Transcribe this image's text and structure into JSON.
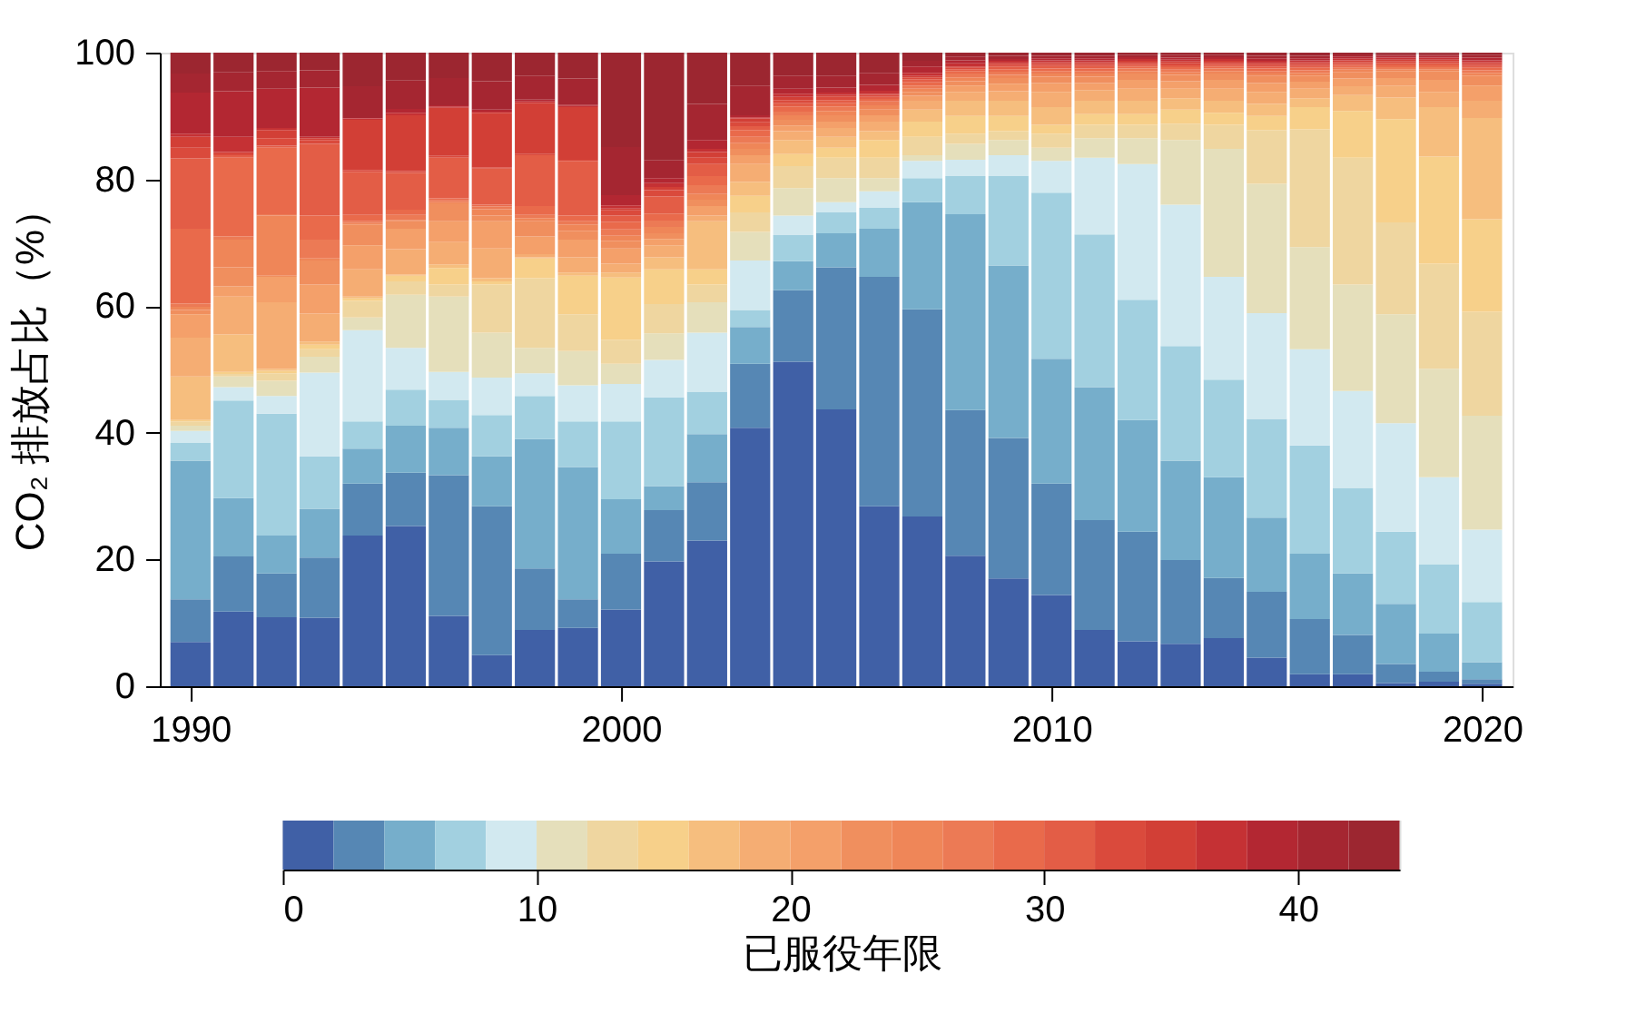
{
  "chart_data": {
    "type": "bar",
    "stacked": true,
    "ylabel": "CO₂ 排放占比（%）",
    "clabel": "已服役年限",
    "clim": [
      0,
      44
    ],
    "cticks": [
      0,
      10,
      20,
      30,
      40
    ],
    "x": [
      1990,
      1991,
      1992,
      1993,
      1994,
      1995,
      1996,
      1997,
      1998,
      1999,
      2000,
      2001,
      2002,
      2003,
      2004,
      2005,
      2006,
      2007,
      2008,
      2009,
      2010,
      2011,
      2012,
      2013,
      2014,
      2015,
      2016,
      2017,
      2018,
      2019,
      2020
    ],
    "xlim": [
      1989.5,
      2020.5
    ],
    "xticks": [
      1990,
      2000,
      2010,
      2020
    ],
    "ylim": [
      0,
      100
    ],
    "yticks": [
      0,
      20,
      40,
      60,
      80,
      100
    ],
    "grid": false,
    "legend": false,
    "series": [
      {
        "color": "#4060a6",
        "values": [
          7.0,
          11.8,
          10.9,
          10.8,
          23.8,
          25.3,
          11.1,
          4.9,
          8.9,
          9.2,
          12.1,
          19.7,
          23.0,
          40.8,
          51.2,
          43.7,
          28.4,
          26.8,
          20.6,
          17.0,
          14.4,
          8.9,
          7.1,
          6.7,
          7.6,
          4.5,
          1.9,
          1.9,
          0.5,
          0.7,
          0.4
        ]
      },
      {
        "color": "#5687b4",
        "values": [
          6.7,
          8.7,
          6.9,
          9.5,
          8.2,
          8.4,
          22.2,
          23.5,
          9.7,
          4.5,
          8.8,
          8.1,
          9.2,
          10.1,
          11.3,
          22.4,
          36.2,
          32.7,
          23.0,
          22.2,
          17.6,
          17.3,
          17.3,
          13.2,
          9.5,
          10.4,
          8.7,
          6.2,
          3.0,
          1.6,
          0.7
        ]
      },
      {
        "color": "#76aecb",
        "values": [
          21.9,
          9.2,
          6.0,
          7.7,
          5.5,
          7.4,
          7.5,
          7.9,
          20.4,
          20.9,
          8.6,
          3.8,
          7.6,
          5.8,
          4.6,
          5.4,
          7.6,
          16.9,
          30.9,
          27.2,
          19.7,
          21.0,
          17.6,
          15.7,
          15.9,
          11.7,
          10.3,
          9.7,
          9.5,
          6.0,
          2.7
        ]
      },
      {
        "color": "#a2d0e0",
        "values": [
          2.8,
          15.4,
          19.2,
          8.3,
          4.3,
          5.7,
          4.4,
          6.5,
          6.8,
          7.2,
          12.3,
          14.0,
          6.7,
          2.7,
          4.1,
          3.3,
          3.3,
          3.8,
          6.0,
          14.1,
          26.2,
          24.1,
          19.0,
          18.1,
          15.4,
          15.6,
          17.1,
          13.5,
          11.4,
          10.9,
          9.5
        ]
      },
      {
        "color": "#d2e9f0",
        "values": [
          1.9,
          2.1,
          2.8,
          13.2,
          14.4,
          6.6,
          4.4,
          5.9,
          3.6,
          5.7,
          5.9,
          5.9,
          9.3,
          7.8,
          3.1,
          1.6,
          2.6,
          2.7,
          2.6,
          3.3,
          5.0,
          12.1,
          21.4,
          22.3,
          16.2,
          16.7,
          15.2,
          15.3,
          17.1,
          13.8,
          11.4
        ]
      },
      {
        "color": "#e5dfbb",
        "values": [
          0.8,
          1.7,
          2.4,
          2.5,
          2.0,
          8.4,
          11.9,
          7.1,
          4.0,
          5.4,
          3.2,
          4.2,
          4.8,
          4.5,
          4.3,
          3.8,
          2.1,
          0.9,
          2.5,
          2.4,
          2.1,
          3.1,
          4.1,
          10.2,
          20.2,
          20.4,
          16.1,
          16.8,
          17.2,
          17.1,
          18.0
        ]
      },
      {
        "color": "#efd6a0",
        "values": [
          0.7,
          0.4,
          1.2,
          1.2,
          2.6,
          2.1,
          1.9,
          7.6,
          11.0,
          5.8,
          3.8,
          4.6,
          2.8,
          3.1,
          3.5,
          3.2,
          3.2,
          2.9,
          1.6,
          1.4,
          2.2,
          2.1,
          2.1,
          2.6,
          3.8,
          8.5,
          18.6,
          20.0,
          14.5,
          16.6,
          16.4
        ]
      },
      {
        "color": "#f7d08a",
        "values": [
          0.2,
          0.3,
          0.4,
          0.7,
          0.4,
          0.9,
          2.6,
          0.5,
          3.1,
          6.1,
          9.8,
          5.5,
          2.4,
          2.6,
          1.9,
          1.6,
          2.8,
          2.4,
          2.8,
          2.4,
          1.4,
          1.7,
          1.7,
          2.2,
          1.9,
          2.2,
          3.5,
          7.4,
          16.3,
          16.9,
          14.6
        ]
      },
      {
        "color": "#f6be7e",
        "values": [
          6.9,
          5.9,
          0.3,
          0.5,
          0.3,
          0.2,
          0.6,
          0.5,
          0.2,
          0.5,
          0.8,
          1.9,
          7.6,
          2.2,
          2.2,
          1.7,
          1.4,
          1.9,
          2.4,
          2.4,
          2.8,
          2.1,
          2.1,
          1.8,
          1.9,
          1.9,
          1.4,
          2.5,
          3.4,
          7.8,
          16.0
        ]
      },
      {
        "color": "#f5ad73",
        "values": [
          6.1,
          6.0,
          10.5,
          4.4,
          4.3,
          4.0,
          3.5,
          4.7,
          0.5,
          2.4,
          1.4,
          1.9,
          0.9,
          2.8,
          1.4,
          1.4,
          1.5,
          1.4,
          1.4,
          1.5,
          2.4,
          1.7,
          1.9,
          1.5,
          1.9,
          1.9,
          1.5,
          1.4,
          1.9,
          2.4,
          2.7
        ]
      },
      {
        "color": "#f4a06a",
        "values": [
          3.7,
          1.6,
          4.0,
          4.6,
          3.8,
          3.2,
          3.3,
          4.3,
          2.8,
          2.8,
          2.4,
          1.0,
          1.5,
          1.4,
          0.9,
          1.0,
          1.0,
          0.8,
          1.0,
          1.2,
          1.4,
          1.1,
          1.4,
          1.2,
          1.4,
          1.4,
          1.1,
          1.2,
          1.2,
          1.9,
          2.4
        ]
      },
      {
        "color": "#f08f5e",
        "values": [
          0.7,
          3.0,
          0.2,
          3.8,
          3.3,
          1.2,
          2.8,
          0.9,
          2.4,
          1.4,
          1.2,
          0.9,
          1.0,
          1.0,
          0.9,
          1.0,
          0.9,
          0.6,
          0.7,
          0.9,
          1.0,
          1.0,
          1.0,
          1.0,
          1.0,
          1.1,
          1.0,
          1.0,
          1.1,
          1.4,
          1.6
        ]
      },
      {
        "color": "#ef8658",
        "values": [
          0.5,
          4.4,
          9.5,
          0.3,
          0.2,
          0.2,
          0.2,
          1.0,
          0.5,
          1.0,
          0.8,
          1.0,
          0.9,
          0.9,
          0.7,
          0.7,
          0.7,
          0.5,
          0.6,
          0.5,
          0.5,
          0.5,
          0.4,
          0.4,
          0.4,
          0.4,
          0.4,
          0.4,
          0.3,
          0.3,
          0.4
        ]
      },
      {
        "color": "#ec7a55",
        "values": [
          0.5,
          0.5,
          0.2,
          3.0,
          0.3,
          0.8,
          0.3,
          0.4,
          0.5,
          0.5,
          1.0,
          1.0,
          1.4,
          1.0,
          0.6,
          0.7,
          0.6,
          0.5,
          0.6,
          0.5,
          0.4,
          0.4,
          0.4,
          0.4,
          0.4,
          0.4,
          0.4,
          0.3,
          0.3,
          0.3,
          0.4
        ]
      },
      {
        "color": "#e96a4b",
        "values": [
          11.8,
          12.4,
          10.5,
          3.8,
          1.0,
          0.8,
          0.3,
          0.3,
          1.4,
          0.9,
          1.2,
          1.1,
          1.4,
          1.1,
          0.8,
          0.5,
          0.4,
          0.5,
          0.4,
          0.4,
          0.4,
          0.4,
          0.3,
          0.4,
          0.3,
          0.4,
          0.4,
          0.3,
          0.3,
          0.3,
          0.4
        ]
      },
      {
        "color": "#e35d46",
        "values": [
          11.1,
          0.4,
          0.3,
          11.3,
          6.8,
          5.8,
          6.4,
          5.7,
          8.0,
          8.6,
          1.0,
          2.7,
          1.9,
          0.6,
          0.5,
          0.5,
          0.3,
          0.5,
          0.3,
          0.4,
          0.4,
          0.4,
          0.3,
          0.3,
          0.3,
          0.3,
          0.3,
          0.3,
          0.3,
          0.3,
          0.3
        ]
      },
      {
        "color": "#da4a3c",
        "values": [
          1.7,
          0.3,
          1.2,
          0.6,
          0.3,
          0.3,
          0.3,
          0.2,
          0.2,
          0.2,
          0.8,
          1.0,
          1.0,
          0.6,
          0.5,
          0.5,
          0.3,
          0.3,
          0.2,
          0.3,
          0.3,
          0.3,
          0.3,
          0.3,
          0.3,
          0.3,
          0.3,
          0.3,
          0.3,
          0.3,
          0.3
        ]
      },
      {
        "color": "#d23f36",
        "values": [
          1.7,
          0.2,
          1.3,
          0.3,
          7.9,
          8.8,
          7.6,
          8.6,
          8.1,
          8.3,
          0.3,
          0.5,
          0.9,
          0.6,
          0.5,
          0.3,
          0.2,
          0.2,
          0.2,
          0.3,
          0.3,
          0.3,
          0.3,
          0.3,
          0.3,
          0.3,
          0.3,
          0.3,
          0.3,
          0.3,
          0.3
        ]
      },
      {
        "color": "#c53134",
        "values": [
          0.5,
          2.4,
          0.3,
          0.2,
          0.2,
          0.4,
          0.2,
          0.2,
          0.2,
          0.2,
          0.5,
          0.6,
          0.5,
          0.2,
          0.5,
          0.4,
          0.5,
          0.5,
          0.5,
          0.3,
          0.3,
          0.3,
          0.3,
          0.3,
          0.3,
          0.3,
          0.3,
          0.3,
          0.3,
          0.3,
          0.3
        ]
      },
      {
        "color": "#b32732",
        "values": [
          6.5,
          7.2,
          6.2,
          7.8,
          0.1,
          0.6,
          0.2,
          0.3,
          0.3,
          0.2,
          1.6,
          0.8,
          1.4,
          0.3,
          0.8,
          0.8,
          0.9,
          1.0,
          0.5,
          0.3,
          0.3,
          0.3,
          0.3,
          0.3,
          0.3,
          0.4,
          0.3,
          0.3,
          0.3,
          0.3,
          0.4
        ]
      },
      {
        "color": "#a52631",
        "values": [
          3.0,
          3.0,
          2.8,
          2.7,
          5.0,
          4.5,
          4.3,
          4.5,
          3.8,
          4.1,
          7.6,
          2.8,
          5.7,
          4.7,
          2.1,
          1.9,
          1.9,
          0.9,
          0.6,
          0.5,
          0.4,
          0.4,
          0.3,
          0.4,
          0.3,
          0.4,
          0.4,
          0.3,
          0.3,
          0.3,
          0.4
        ]
      },
      {
        "color": "#9c2630",
        "values": [
          3.3,
          3.1,
          2.9,
          2.8,
          5.3,
          4.4,
          4.0,
          4.5,
          3.6,
          4.1,
          14.9,
          17.0,
          8.1,
          5.2,
          3.6,
          3.6,
          3.2,
          1.3,
          0.6,
          0.5,
          0.5,
          0.5,
          0.4,
          0.4,
          0.4,
          0.5,
          0.5,
          0.3,
          0.2,
          0.2,
          0.4
        ]
      }
    ]
  }
}
